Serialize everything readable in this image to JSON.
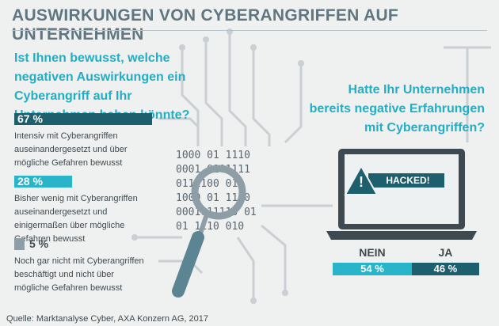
{
  "title": "AUSWIRKUNGEN VON CYBERANGRIFFEN AUF UNTERNEHMEN",
  "source": "Quelle: Marktanalyse Cyber, AXA Konzern AG, 2017",
  "decoration": {
    "binary": [
      "1000 01 1110",
      "0001 0101111",
      "0111100 010",
      "1000 01 1110",
      "0001011110 01",
      "01 1110 010"
    ],
    "hacked": "HACKED!"
  },
  "chart_data": [
    {
      "type": "bar",
      "orientation": "horizontal",
      "title": "Ist Ihnen bewusst, welche negativen Auswirkungen ein Cyberangriff auf Ihr Unternehmen haben könnte?",
      "categories": [
        "Intensiv mit Cyberangriffen auseinandergesetzt und über mögliche Gefahren bewusst",
        "Bisher wenig mit Cyberangriffen auseinandergesetzt und einigermaßen über mögliche Gefahren bewusst",
        "Noch gar nicht mit Cyberangriffen beschäftigt und nicht über mögliche Gefahren bewusst"
      ],
      "values": [
        67,
        28,
        5
      ],
      "value_labels": [
        "67 %",
        "28 %",
        "5 %"
      ],
      "colors": [
        "#1d5f6d",
        "#2ab4c9",
        "#8d9ea6"
      ]
    },
    {
      "type": "stacked",
      "orientation": "horizontal",
      "title": "Hatte Ihr Unternehmen bereits negative Erfahrungen mit Cyberangriffen?",
      "series": [
        {
          "name": "NEIN",
          "color": "#2ab4c9",
          "values": [
            54
          ],
          "value_labels": [
            "54 %"
          ]
        },
        {
          "name": "JA",
          "color": "#1d5f6d",
          "values": [
            46
          ],
          "value_labels": [
            "46 %"
          ]
        }
      ]
    }
  ]
}
